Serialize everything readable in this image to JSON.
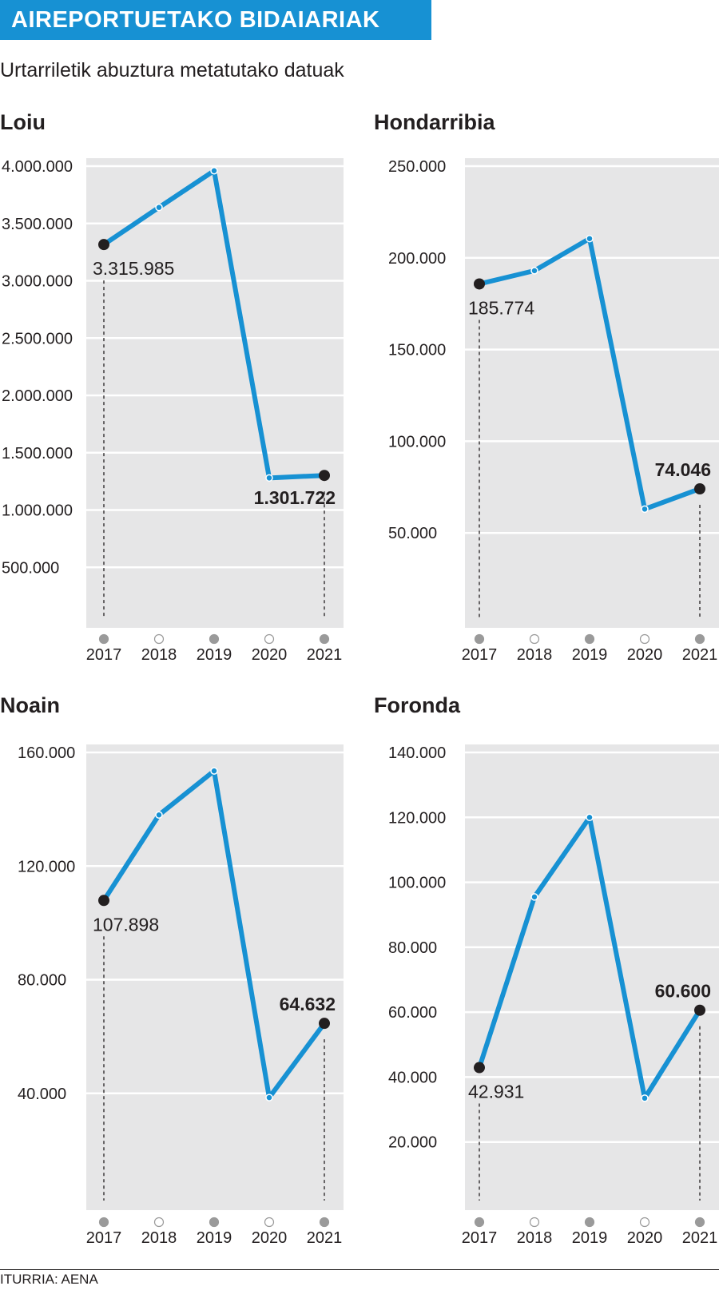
{
  "header": {
    "title": "AIREPORTUETAKO BIDAIARIAK",
    "subtitle": "Urtarriletik abuztura metatutako datuak"
  },
  "footer": {
    "source": "ITURRIA: AENA"
  },
  "colors": {
    "accent": "#1791d3",
    "panel_bg": "#e6e6e7",
    "text": "#231f20",
    "marker": "#231f20",
    "year_dot_filled": "#9a9a9a"
  },
  "chart_data": [
    {
      "type": "line",
      "title": "Loiu",
      "x": [
        "2017",
        "2018",
        "2019",
        "2020",
        "2021"
      ],
      "series": [
        {
          "values": [
            3315985,
            3640000,
            3960000,
            1280000,
            1301722
          ]
        }
      ],
      "ylim": [
        0,
        4000000
      ],
      "yticks": [
        500000,
        1000000,
        1500000,
        2000000,
        2500000,
        3000000,
        3500000,
        4000000
      ],
      "ytick_labels": [
        "500.000",
        "1.000.000",
        "1.500.000",
        "2.000.000",
        "2.500.000",
        "3.000.000",
        "3.500.000",
        "4.000.000"
      ],
      "annotations": [
        {
          "index": 0,
          "text": "3.315.985",
          "bold": false
        },
        {
          "index": 4,
          "text": "1.301.722",
          "bold": true
        }
      ],
      "grid": true
    },
    {
      "type": "line",
      "title": "Hondarribia",
      "x": [
        "2017",
        "2018",
        "2019",
        "2020",
        "2021"
      ],
      "series": [
        {
          "values": [
            185774,
            193000,
            210500,
            63000,
            74046
          ]
        }
      ],
      "ylim": [
        0,
        250000
      ],
      "yticks": [
        50000,
        100000,
        150000,
        200000,
        250000
      ],
      "ytick_labels": [
        "50.000",
        "100.000",
        "150.000",
        "200.000",
        "250.000"
      ],
      "annotations": [
        {
          "index": 0,
          "text": "185.774",
          "bold": false
        },
        {
          "index": 4,
          "text": "74.046",
          "bold": true
        }
      ],
      "grid": true
    },
    {
      "type": "line",
      "title": "Noain",
      "x": [
        "2017",
        "2018",
        "2019",
        "2020",
        "2021"
      ],
      "series": [
        {
          "values": [
            107898,
            138000,
            153500,
            38500,
            64632
          ]
        }
      ],
      "ylim": [
        0,
        160000
      ],
      "yticks": [
        40000,
        80000,
        120000,
        160000
      ],
      "ytick_labels": [
        "40.000",
        "80.000",
        "120.000",
        "160.000"
      ],
      "annotations": [
        {
          "index": 0,
          "text": "107.898",
          "bold": false
        },
        {
          "index": 4,
          "text": "64.632",
          "bold": true
        }
      ],
      "grid": true
    },
    {
      "type": "line",
      "title": "Foronda",
      "x": [
        "2017",
        "2018",
        "2019",
        "2020",
        "2021"
      ],
      "series": [
        {
          "values": [
            42931,
            95500,
            120000,
            33500,
            60600
          ]
        }
      ],
      "ylim": [
        0,
        140000
      ],
      "yticks": [
        20000,
        40000,
        60000,
        80000,
        100000,
        120000,
        140000
      ],
      "ytick_labels": [
        "20.000",
        "40.000",
        "60.000",
        "80.000",
        "100.000",
        "120.000",
        "140.000"
      ],
      "annotations": [
        {
          "index": 0,
          "text": "42.931",
          "bold": false
        },
        {
          "index": 4,
          "text": "60.600",
          "bold": true
        }
      ],
      "grid": true
    }
  ]
}
